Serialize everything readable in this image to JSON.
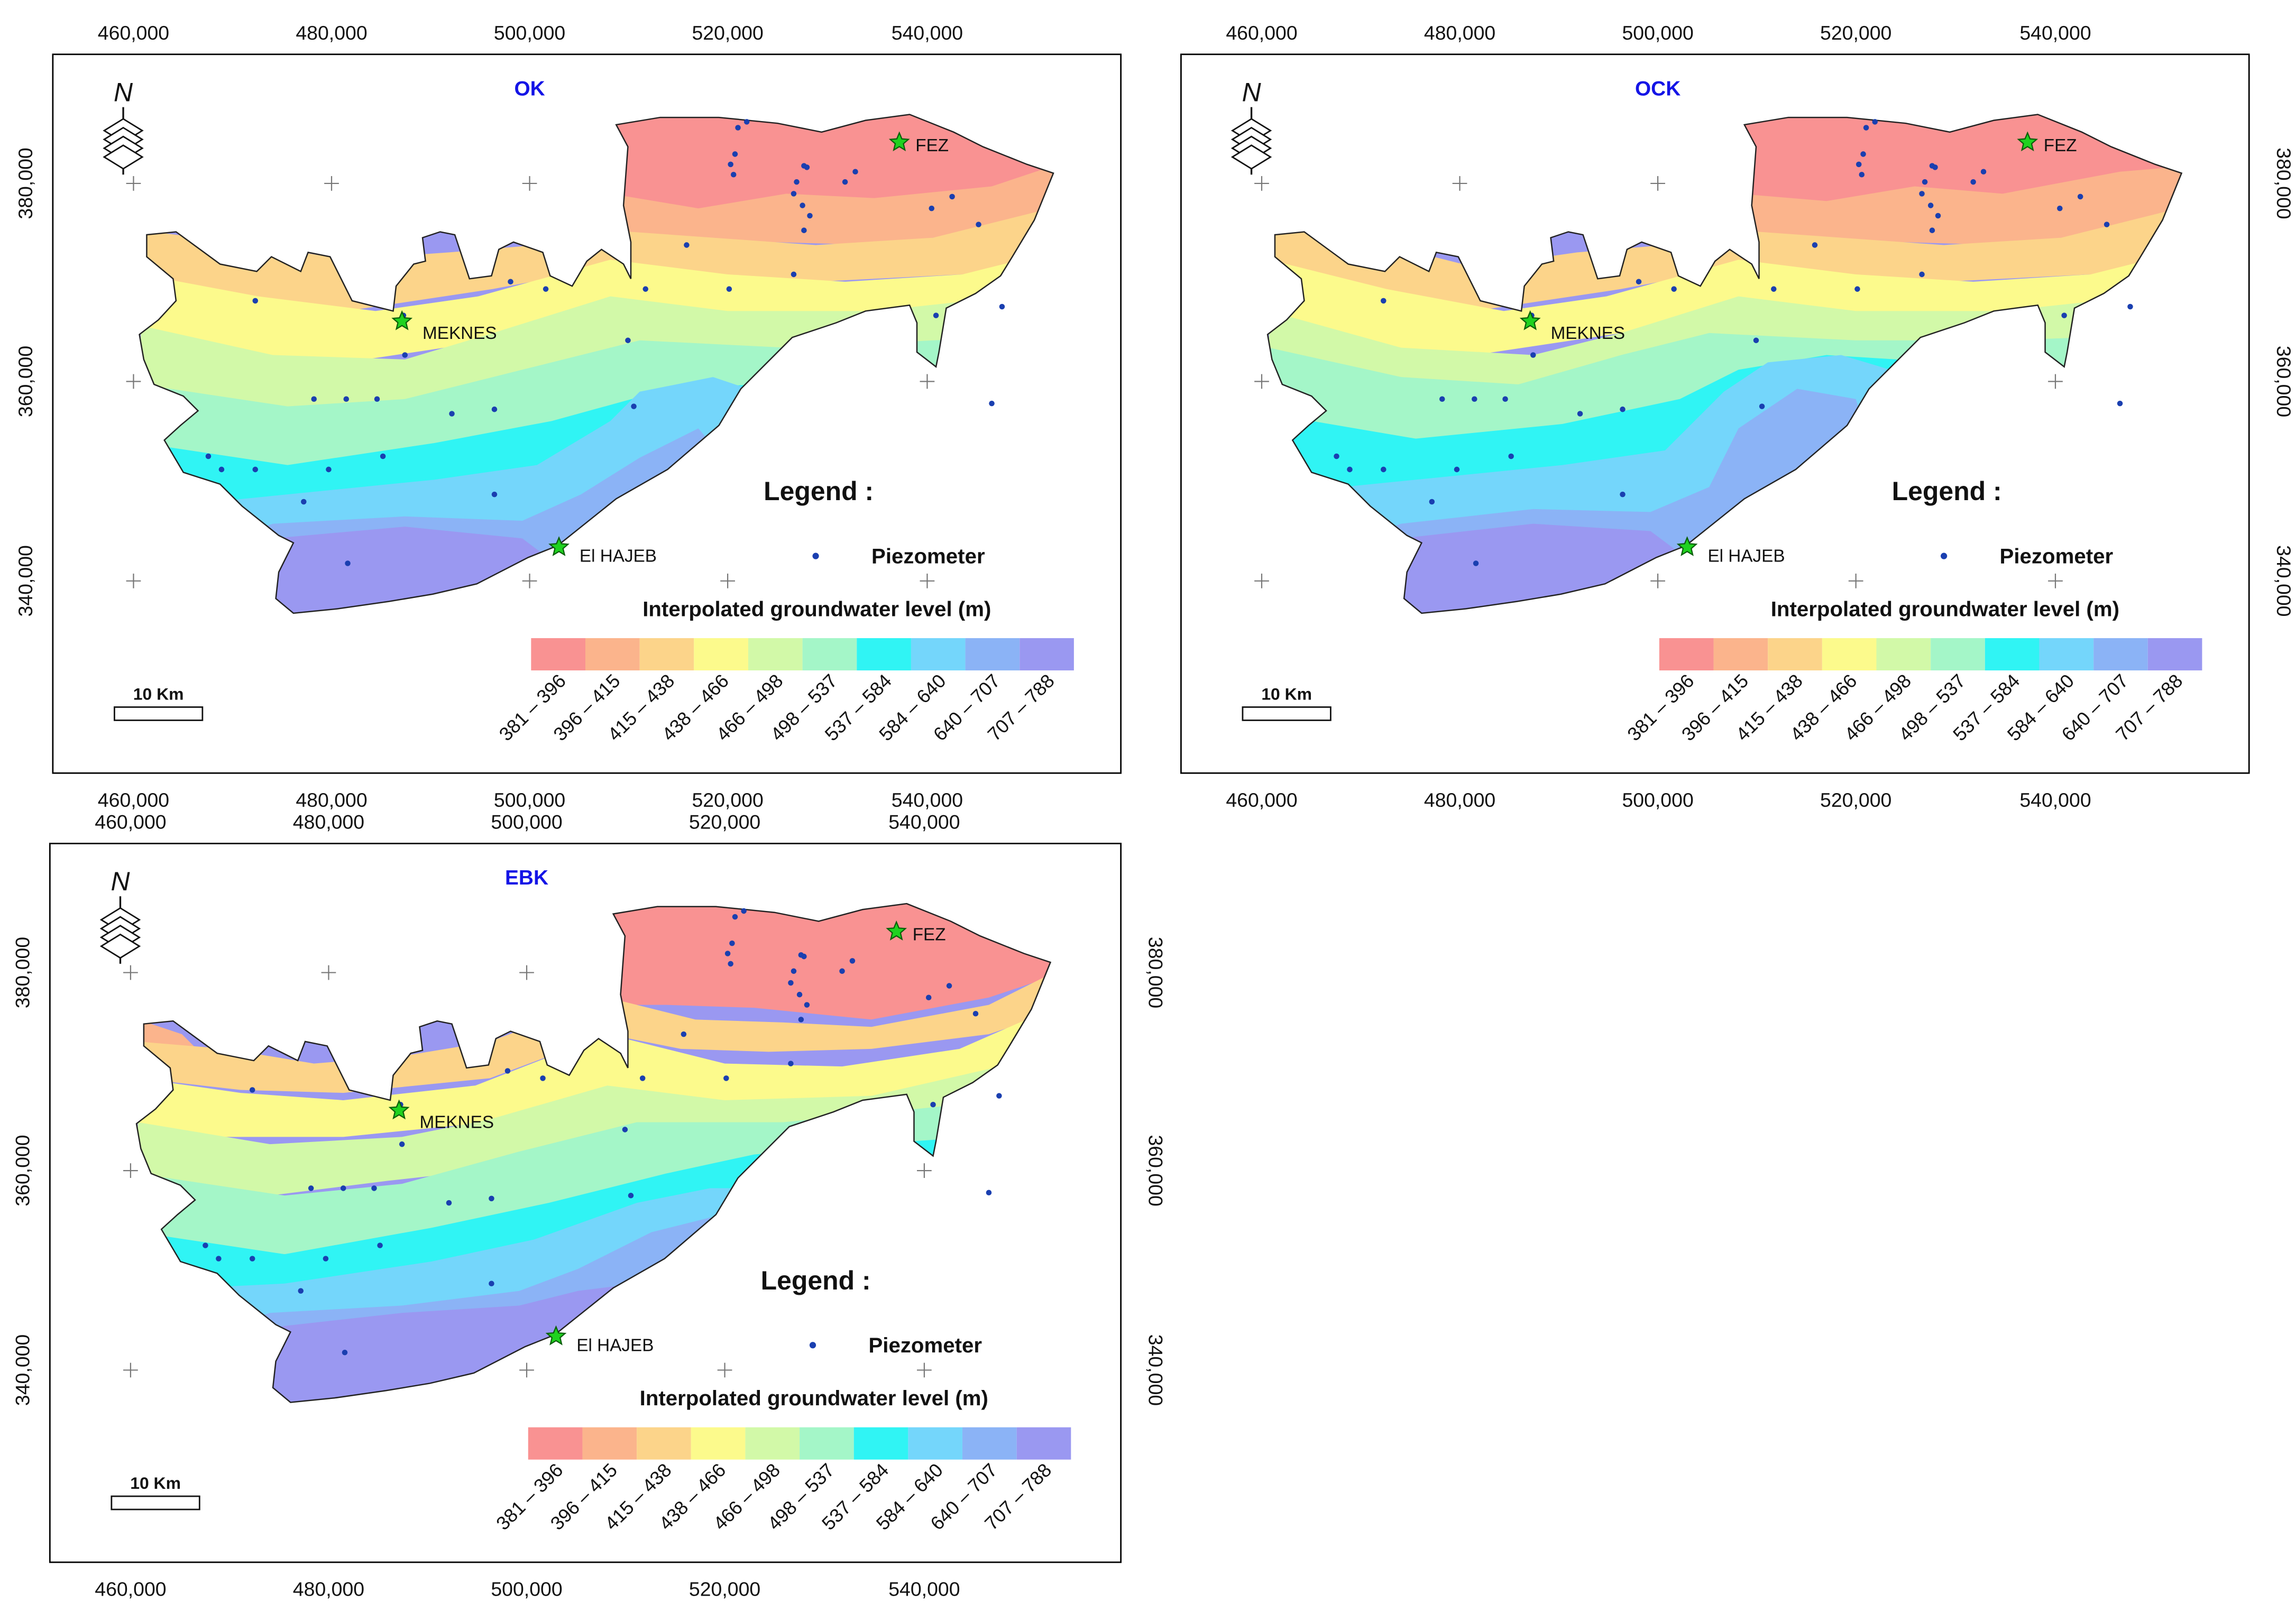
{
  "figure": {
    "coord_labels": {
      "x": [
        "460,000",
        "480,000",
        "500,000",
        "520,000",
        "540,000"
      ],
      "y": [
        "380,000",
        "360,000",
        "340,000"
      ]
    },
    "cities": [
      {
        "name": "FEZ"
      },
      {
        "name": "MEKNES"
      },
      {
        "name": "El HAJEB"
      }
    ],
    "legend": {
      "title": "Legend :",
      "point_label": "Piezometer",
      "ramp_title": "Interpolated groundwater level (m)",
      "classes": [
        {
          "label": "381 – 396",
          "color": "#f99292"
        },
        {
          "label": "396 – 415",
          "color": "#fbb48c"
        },
        {
          "label": "415 – 438",
          "color": "#fcd48a"
        },
        {
          "label": "438 – 466",
          "color": "#fcfa8c"
        },
        {
          "label": "466 – 498",
          "color": "#d2f9a8"
        },
        {
          "label": "498 – 537",
          "color": "#a4f6c8"
        },
        {
          "label": "537 – 584",
          "color": "#30f4f4"
        },
        {
          "label": "584 – 640",
          "color": "#74d6fb"
        },
        {
          "label": "640 – 707",
          "color": "#8bb3f6"
        },
        {
          "label": "707 – 788",
          "color": "#9a98f1"
        }
      ]
    },
    "scale_bar": "10 Km",
    "north_label": "N",
    "accent_color": "#1414e6",
    "panels": [
      {
        "id": "ok",
        "title": "OK"
      },
      {
        "id": "ock",
        "title": "OCK"
      },
      {
        "id": "ebk",
        "title": "EBK"
      }
    ]
  }
}
